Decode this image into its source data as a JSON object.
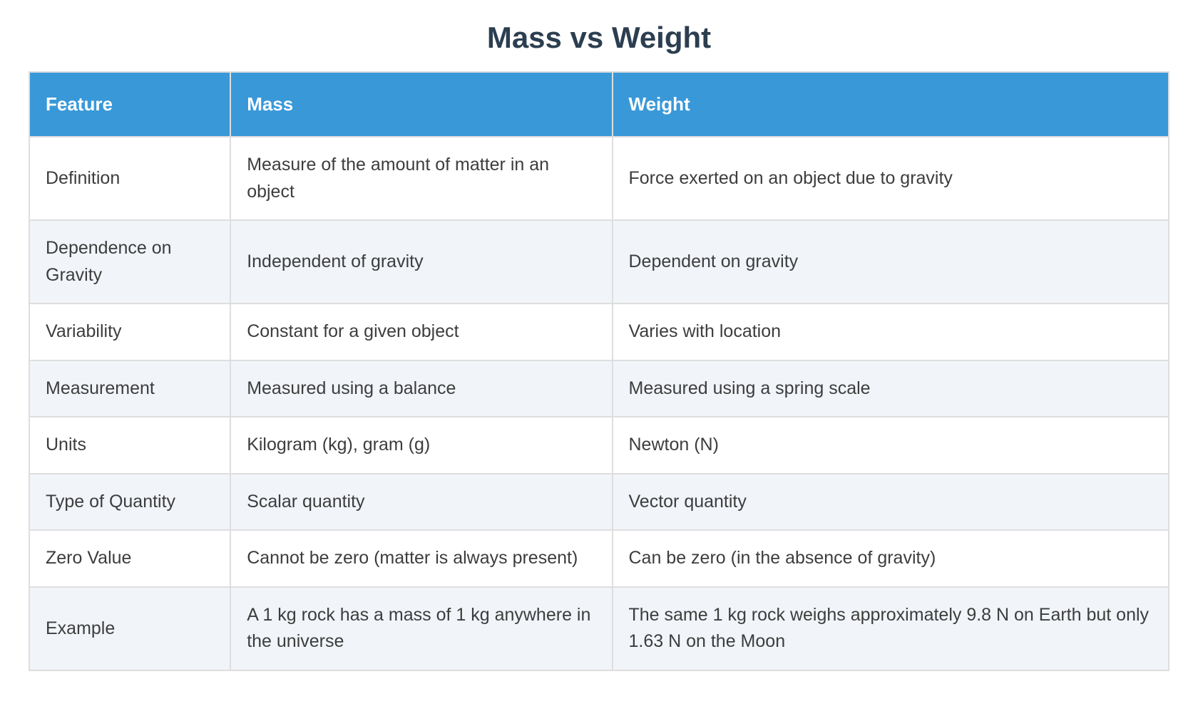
{
  "title": "Mass vs Weight",
  "colors": {
    "title_text": "#2c3e50",
    "header_bg": "#3998d8",
    "header_text": "#ffffff",
    "row_bg": "#ffffff",
    "row_alt_bg": "#f1f4f9",
    "grid_line": "#dedede",
    "body_text": "#3d3d3d"
  },
  "chart_data": {
    "type": "table",
    "title": "Mass vs Weight",
    "columns": [
      "Feature",
      "Mass",
      "Weight"
    ],
    "rows": [
      [
        "Definition",
        "Measure of the amount of matter in an object",
        "Force exerted on an object due to gravity"
      ],
      [
        "Dependence on Gravity",
        "Independent of gravity",
        "Dependent on gravity"
      ],
      [
        "Variability",
        "Constant for a given object",
        "Varies with location"
      ],
      [
        "Measurement",
        "Measured using a balance",
        "Measured using a spring scale"
      ],
      [
        "Units",
        "Kilogram (kg), gram (g)",
        "Newton (N)"
      ],
      [
        "Type of Quantity",
        "Scalar quantity",
        "Vector quantity"
      ],
      [
        "Zero Value",
        "Cannot be zero (matter is always present)",
        "Can be zero (in the absence of gravity)"
      ],
      [
        "Example",
        "A 1 kg rock has a mass of 1 kg anywhere in the universe",
        "The same 1 kg rock weighs approximately 9.8 N on Earth but only 1.63 N on the Moon"
      ]
    ],
    "layout": {
      "header_position": "top",
      "striped_rows": true,
      "grid": true
    }
  }
}
